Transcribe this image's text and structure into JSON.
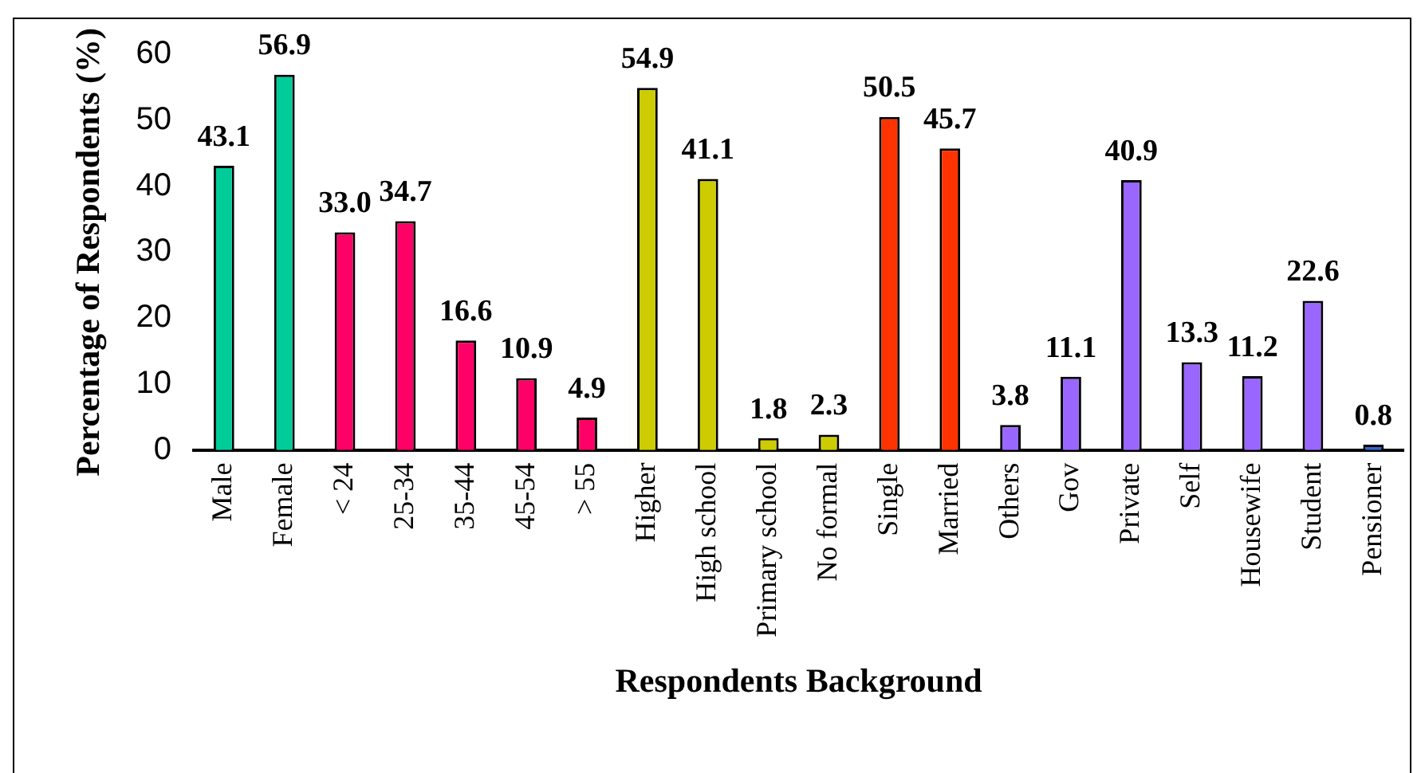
{
  "chart_data": {
    "type": "bar",
    "xlabel": "Respondents Background",
    "ylabel": "Percentage of Respondents (%)",
    "categories": [
      "Male",
      "Female",
      "< 24",
      "25-34",
      "35-44",
      "45-54",
      "> 55",
      "Higher",
      "High school",
      "Primary school",
      "No formal",
      "Single",
      "Married",
      "Others",
      "Gov",
      "Private",
      "Self",
      "Housewife",
      "Student",
      "Pensioner"
    ],
    "values": [
      43.1,
      56.9,
      33.0,
      34.7,
      16.6,
      10.9,
      4.9,
      54.9,
      41.1,
      1.8,
      2.3,
      50.5,
      45.7,
      3.8,
      11.1,
      40.9,
      13.3,
      11.2,
      22.6,
      0.8
    ],
    "value_labels": [
      "43.1",
      "56.9",
      "33.0",
      "34.7",
      "16.6",
      "10.9",
      "4.9",
      "54.9",
      "41.1",
      "1.8",
      "2.3",
      "50.5",
      "45.7",
      "3.8",
      "11.1",
      "40.9",
      "13.3",
      "11.2",
      "22.6",
      "0.8"
    ],
    "colors": [
      "#00cc99",
      "#00cc99",
      "#ff0066",
      "#ff0066",
      "#ff0066",
      "#ff0066",
      "#ff0066",
      "#cccc00",
      "#cccc00",
      "#cccc00",
      "#cccc00",
      "#ff3300",
      "#ff3300",
      "#9966ff",
      "#9966ff",
      "#9966ff",
      "#9966ff",
      "#9966ff",
      "#9966ff",
      "#3366cc"
    ],
    "ylim": [
      0,
      60
    ],
    "yticks": [
      0,
      10,
      20,
      30,
      40,
      50,
      60
    ],
    "grid": false,
    "legend": false
  }
}
